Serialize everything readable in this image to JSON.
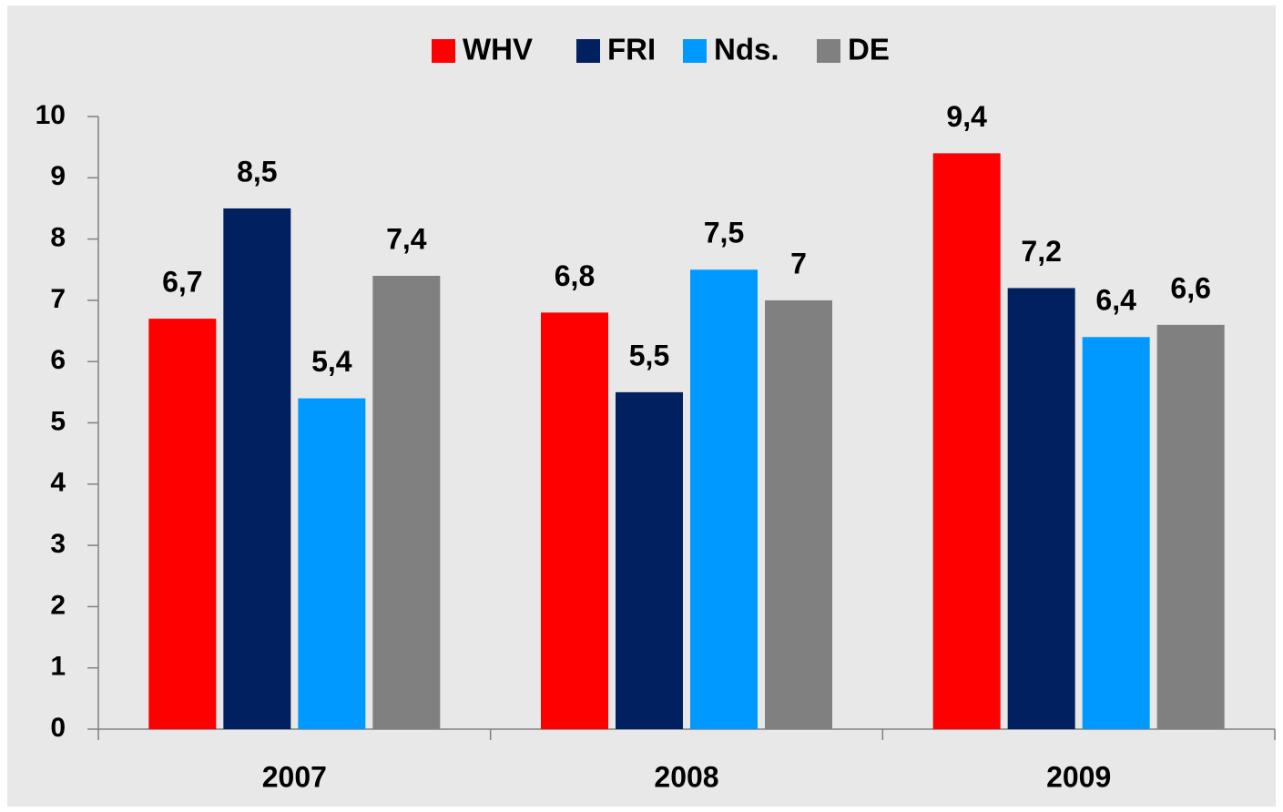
{
  "chart_data": {
    "type": "bar",
    "categories": [
      "2007",
      "2008",
      "2009"
    ],
    "series": [
      {
        "name": "WHV",
        "color": "#ff0000",
        "values": [
          6.7,
          6.8,
          9.4
        ],
        "value_labels": [
          "6,7",
          "6,8",
          "9,4"
        ]
      },
      {
        "name": "FRI",
        "color": "#002060",
        "values": [
          8.5,
          5.5,
          7.2
        ],
        "value_labels": [
          "8,5",
          "5,5",
          "7,2"
        ]
      },
      {
        "name": "Nds.",
        "color": "#0099ff",
        "values": [
          5.4,
          7.5,
          6.4
        ],
        "value_labels": [
          "5,4",
          "7,5",
          "6,4"
        ]
      },
      {
        "name": "DE",
        "color": "#808080",
        "values": [
          7.4,
          7,
          6.6
        ],
        "value_labels": [
          "7,4",
          "7",
          "6,6"
        ]
      }
    ],
    "ylim": [
      0,
      10
    ],
    "yticks": [
      0,
      1,
      2,
      3,
      4,
      5,
      6,
      7,
      8,
      9,
      10
    ],
    "grid": false,
    "legend": "top"
  }
}
